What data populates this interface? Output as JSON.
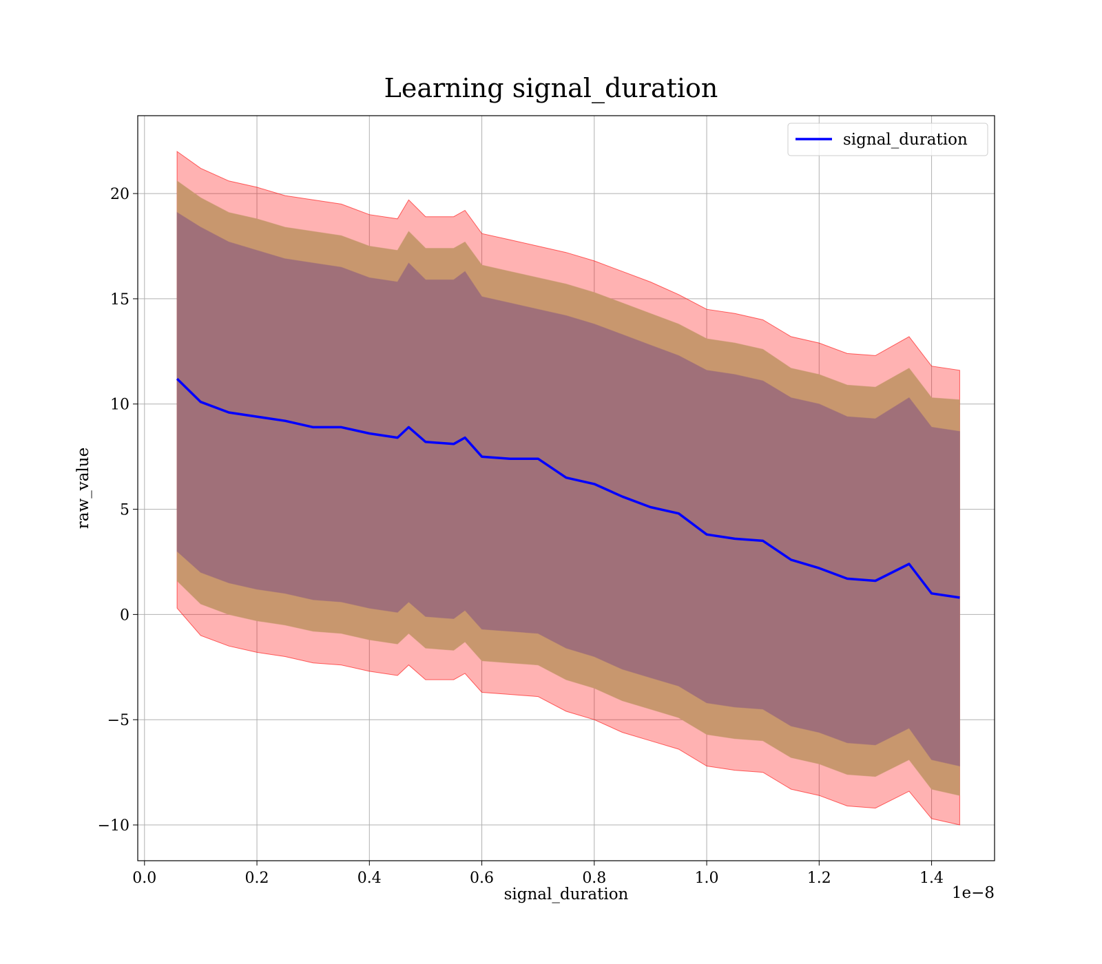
{
  "chart_data": {
    "type": "area",
    "title": "Learning signal_duration",
    "xlabel": "signal_duration",
    "ylabel": "raw_value",
    "x_offset_label": "1e−8",
    "xlim": [
      -0.012,
      1.512
    ],
    "ylim": [
      -11.7,
      23.7
    ],
    "x_ticks": [
      0.0,
      0.2,
      0.4,
      0.6,
      0.8,
      1.0,
      1.2,
      1.4
    ],
    "x_tick_labels": [
      "0.0",
      "0.2",
      "0.4",
      "0.6",
      "0.8",
      "1.0",
      "1.2",
      "1.4"
    ],
    "y_ticks": [
      -10,
      -5,
      0,
      5,
      10,
      15,
      20
    ],
    "y_tick_labels": [
      "−10",
      "−5",
      "0",
      "5",
      "10",
      "15",
      "20"
    ],
    "grid": true,
    "legend_position": "top-right",
    "x": [
      0.058,
      0.1,
      0.15,
      0.2,
      0.25,
      0.3,
      0.35,
      0.4,
      0.45,
      0.47,
      0.5,
      0.55,
      0.57,
      0.6,
      0.65,
      0.7,
      0.75,
      0.8,
      0.85,
      0.9,
      0.95,
      1.0,
      1.05,
      1.1,
      1.15,
      1.2,
      1.25,
      1.3,
      1.36,
      1.4,
      1.45
    ],
    "series": [
      {
        "name": "signal_duration",
        "color": "#0000ff",
        "values": [
          11.2,
          10.1,
          9.6,
          9.4,
          9.2,
          8.9,
          8.9,
          8.6,
          8.4,
          8.9,
          8.2,
          8.1,
          8.4,
          7.5,
          7.4,
          7.4,
          6.5,
          6.2,
          5.6,
          5.1,
          4.8,
          3.8,
          3.6,
          3.5,
          2.6,
          2.2,
          1.7,
          1.6,
          2.4,
          1.0,
          0.8
        ]
      }
    ],
    "bands": [
      {
        "level": "outer",
        "color": "#ff0000",
        "opacity": 0.3,
        "lower": [
          0.3,
          -1.0,
          -1.5,
          -1.8,
          -2.0,
          -2.3,
          -2.4,
          -2.7,
          -2.9,
          -2.4,
          -3.1,
          -3.1,
          -2.8,
          -3.7,
          -3.8,
          -3.9,
          -4.6,
          -5.0,
          -5.6,
          -6.0,
          -6.4,
          -7.2,
          -7.4,
          -7.5,
          -8.3,
          -8.6,
          -9.1,
          -9.2,
          -8.4,
          -9.7,
          -10.0
        ],
        "upper": [
          22.0,
          21.2,
          20.6,
          20.3,
          19.9,
          19.7,
          19.5,
          19.0,
          18.8,
          19.7,
          18.9,
          18.9,
          19.2,
          18.1,
          17.8,
          17.5,
          17.2,
          16.8,
          16.3,
          15.8,
          15.2,
          14.5,
          14.3,
          14.0,
          13.2,
          12.9,
          12.4,
          12.3,
          13.2,
          11.8,
          11.6
        ]
      },
      {
        "level": "middle",
        "color": "#c8976e",
        "opacity": 1.0,
        "lower": [
          1.6,
          0.5,
          0.0,
          -0.3,
          -0.5,
          -0.8,
          -0.9,
          -1.2,
          -1.4,
          -0.9,
          -1.6,
          -1.7,
          -1.3,
          -2.2,
          -2.3,
          -2.4,
          -3.1,
          -3.5,
          -4.1,
          -4.5,
          -4.9,
          -5.7,
          -5.9,
          -6.0,
          -6.8,
          -7.1,
          -7.6,
          -7.7,
          -6.9,
          -8.3,
          -8.6
        ],
        "upper": [
          20.6,
          19.8,
          19.1,
          18.8,
          18.4,
          18.2,
          18.0,
          17.5,
          17.3,
          18.2,
          17.4,
          17.4,
          17.7,
          16.6,
          16.3,
          16.0,
          15.7,
          15.3,
          14.8,
          14.3,
          13.8,
          13.1,
          12.9,
          12.6,
          11.7,
          11.4,
          10.9,
          10.8,
          11.7,
          10.3,
          10.2
        ]
      },
      {
        "level": "inner",
        "color": "#a07079",
        "opacity": 1.0,
        "lower": [
          3.0,
          2.0,
          1.5,
          1.2,
          1.0,
          0.7,
          0.6,
          0.3,
          0.1,
          0.6,
          -0.1,
          -0.2,
          0.2,
          -0.7,
          -0.8,
          -0.9,
          -1.6,
          -2.0,
          -2.6,
          -3.0,
          -3.4,
          -4.2,
          -4.4,
          -4.5,
          -5.3,
          -5.6,
          -6.1,
          -6.2,
          -5.4,
          -6.9,
          -7.2
        ],
        "upper": [
          19.1,
          18.4,
          17.7,
          17.3,
          16.9,
          16.7,
          16.5,
          16.0,
          15.8,
          16.7,
          15.9,
          15.9,
          16.3,
          15.1,
          14.8,
          14.5,
          14.2,
          13.8,
          13.3,
          12.8,
          12.3,
          11.6,
          11.4,
          11.1,
          10.3,
          10.0,
          9.4,
          9.3,
          10.3,
          8.9,
          8.7
        ]
      }
    ]
  }
}
